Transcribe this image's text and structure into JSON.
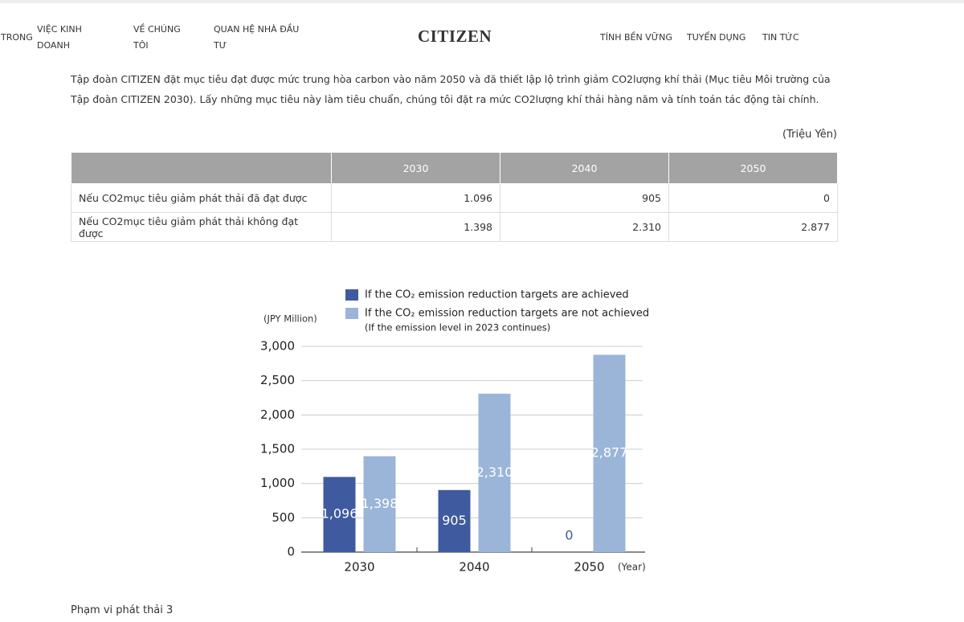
{
  "nav": {
    "items_left": [
      "TRONG",
      "VIỆC KINH DOANH",
      "VỀ CHÚNG TÔI",
      "QUAN HỆ NHÀ ĐẦU TƯ"
    ],
    "logo": "CITIZEN",
    "items_right": [
      "TÍNH BỀN VỮNG",
      "TUYỂN DỤNG",
      "TIN TỨC"
    ]
  },
  "intro": "Tập đoàn CITIZEN đặt mục tiêu đạt được mức trung hòa carbon vào năm 2050 và đã thiết lập lộ trình giảm CO2lượng khí thải (Mục tiêu Môi trường của Tập đoàn CITIZEN 2030). Lấy những mục tiêu này làm tiêu chuẩn, chúng tôi đặt ra mức CO2lượng khí thải hàng năm và tính toán tác động tài chính.",
  "table": {
    "unit": "(Triệu Yên)",
    "header": [
      "2030",
      "2040",
      "2050"
    ],
    "rows": [
      [
        "Nếu CO2mục tiêu giảm phát thải đã đạt được",
        "1.096",
        "905",
        "0"
      ],
      [
        "Nếu CO2mục tiêu giảm phát thải không đạt được",
        "1.398",
        "2.310",
        "2.877"
      ]
    ]
  },
  "chart_data": {
    "type": "bar",
    "y_label": "(JPY Million)",
    "x_label": "(Year)",
    "categories": [
      "2030",
      "2040",
      "2050"
    ],
    "series": [
      {
        "name": "If the CO₂ emission reduction targets are achieved",
        "color": "#3f5a9e",
        "values": [
          1096,
          905,
          0
        ],
        "value_labels": [
          "1,096",
          "905",
          "0"
        ]
      },
      {
        "name": "If the CO₂ emission reduction targets are not achieved",
        "color": "#9bb5d8",
        "values": [
          1398,
          2310,
          2877
        ],
        "value_labels": [
          "1,398",
          "2,310",
          "2,877"
        ]
      }
    ],
    "legend_note": "(If the emission level in 2023 continues)",
    "ylim": [
      0,
      3000
    ],
    "yticks": [
      0,
      500,
      {
        "value": 1000,
        "label": "1,000"
      },
      {
        "value": 1500,
        "label": "1,500"
      },
      {
        "value": 2000,
        "label": "2,000"
      },
      {
        "value": 2500,
        "label": "2,500"
      },
      {
        "value": 3000,
        "label": "3,000"
      }
    ],
    "grid": true
  },
  "footer_heading": "Phạm vi phát thải 3"
}
